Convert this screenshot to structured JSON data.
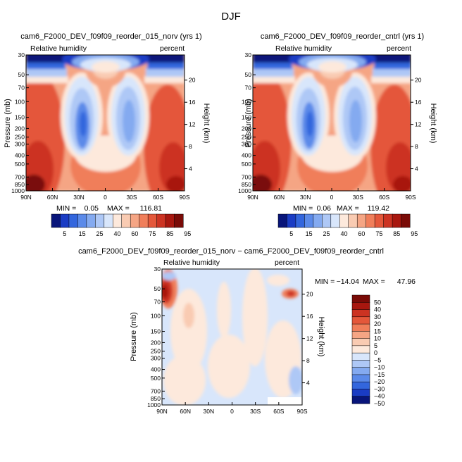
{
  "chart_data": {
    "title": "DJF",
    "field": "Relative humidity",
    "units": "percent",
    "y_label": "Pressure (mb)",
    "y2_label": "Height (km)",
    "pressure_ticks": [
      30,
      50,
      70,
      100,
      150,
      200,
      250,
      300,
      400,
      500,
      700,
      850,
      1000
    ],
    "height_ticks": [
      20,
      16,
      12,
      8,
      4
    ],
    "lat_ticks": [
      "90N",
      "60N",
      "30N",
      "0",
      "30S",
      "60S",
      "90S"
    ],
    "panels": [
      {
        "type": "heatmap",
        "title": "cam6_F2000_DEV_f09f09_reorder_015_norv (yrs 1)",
        "min_label": "MIN =",
        "min_value": "0.05",
        "max_label": "MAX =",
        "max_value": "116.81",
        "colorbar_ticks": [
          "5",
          "15",
          "25",
          "40",
          "60",
          "75",
          "85",
          "95"
        ]
      },
      {
        "type": "heatmap",
        "title": "cam6_F2000_DEV_f09f09_reorder_cntrl (yrs 1)",
        "min_label": "MIN =",
        "min_value": "0.06",
        "max_label": "MAX =",
        "max_value": "119.42",
        "colorbar_ticks": [
          "5",
          "15",
          "25",
          "40",
          "60",
          "75",
          "85",
          "95"
        ]
      },
      {
        "type": "heatmap",
        "title": "cam6_F2000_DEV_f09f09_reorder_015_norv − cam6_F2000_DEV_f09f09_reorder_cntrl",
        "min_label": "MIN =",
        "min_value": "−14.04",
        "max_label": "MAX =",
        "max_value": "47.96",
        "colorbar_ticks": [
          "50",
          "40",
          "30",
          "20",
          "15",
          "10",
          "5",
          "0",
          "−5",
          "−10",
          "−15",
          "−20",
          "−30",
          "−40",
          "−50"
        ]
      }
    ],
    "rh_palette": [
      "#08157a",
      "#1a3cc4",
      "#3366dd",
      "#5b8ae9",
      "#84aaf0",
      "#aec8f6",
      "#d8e6fb",
      "#fde9dc",
      "#f9cbb2",
      "#f5a584",
      "#f07e5a",
      "#e4573a",
      "#cc3322",
      "#a8170f",
      "#7a0b07"
    ],
    "diff_palette": [
      "#7a0b07",
      "#a8170f",
      "#cc3322",
      "#e4573a",
      "#f07e5a",
      "#f5a584",
      "#f9cbb2",
      "#fde9dc",
      "#d8e6fb",
      "#aec8f6",
      "#84aaf0",
      "#5b8ae9",
      "#3366dd",
      "#1a3cc4",
      "#08157a"
    ]
  }
}
